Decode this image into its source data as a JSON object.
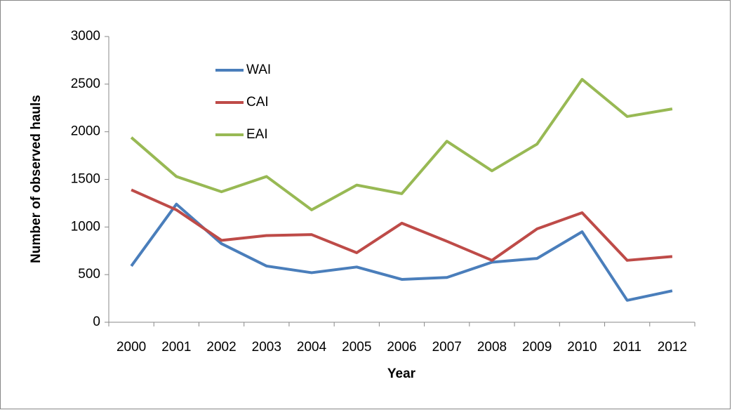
{
  "chart_data": {
    "type": "line",
    "x_label": "Year",
    "y_label": "Number of observed hauls",
    "categories": [
      "2000",
      "2001",
      "2002",
      "2003",
      "2004",
      "2005",
      "2006",
      "2007",
      "2008",
      "2009",
      "2010",
      "2011",
      "2012"
    ],
    "series": [
      {
        "name": "WAI",
        "color": "#4a7ebb",
        "values": [
          590,
          1240,
          825,
          590,
          520,
          580,
          450,
          470,
          630,
          670,
          950,
          230,
          330
        ]
      },
      {
        "name": "CAI",
        "color": "#be4b48",
        "values": [
          1390,
          1180,
          860,
          910,
          920,
          730,
          1040,
          850,
          650,
          980,
          1150,
          650,
          690
        ]
      },
      {
        "name": "EAI",
        "color": "#98b954",
        "values": [
          1940,
          1530,
          1370,
          1530,
          1180,
          1440,
          1350,
          1900,
          1590,
          1870,
          2550,
          2160,
          2240
        ]
      }
    ],
    "ylim": [
      0,
      3000
    ],
    "yticks": [
      0,
      500,
      1000,
      1500,
      2000,
      2500,
      3000
    ],
    "grid": false,
    "legend_position": "top-left"
  }
}
